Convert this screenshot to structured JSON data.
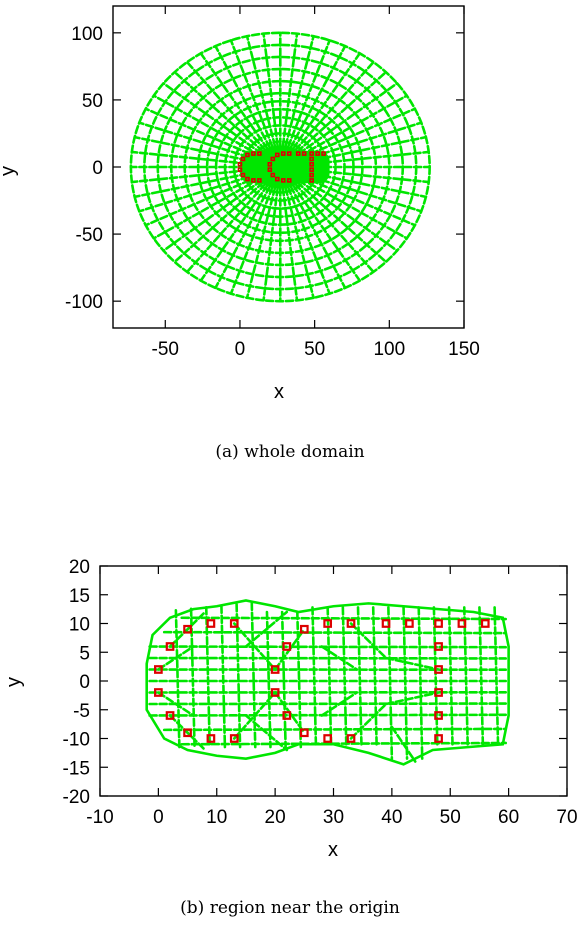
{
  "chart_data": [
    {
      "type": "scatter",
      "caption": "(a) whole domain",
      "xlabel": "x",
      "ylabel": "y",
      "xlim": [
        -85,
        150
      ],
      "ylim": [
        -120,
        120
      ],
      "xticks": [
        -50,
        0,
        50,
        100,
        150
      ],
      "yticks": [
        -100,
        -50,
        0,
        50,
        100
      ],
      "grid": false,
      "colors": {
        "mesh": "#00e600",
        "markers": "#dd0000"
      },
      "mesh": {
        "outer_center": [
          27,
          0
        ],
        "outer_radius": 100,
        "inner_x_range": [
          0,
          60
        ],
        "inner_y_range": [
          -12,
          12
        ]
      },
      "series": [
        {
          "values": [
            [
              2,
              6
            ],
            [
              2,
              -6
            ],
            [
              0,
              2
            ],
            [
              0,
              -2
            ],
            [
              5,
              9
            ],
            [
              5,
              -9
            ],
            [
              9,
              10
            ],
            [
              9,
              -10
            ],
            [
              13,
              10
            ],
            [
              13,
              -10
            ],
            [
              20,
              2
            ],
            [
              20,
              -2
            ],
            [
              22,
              6
            ],
            [
              22,
              -6
            ],
            [
              25,
              9
            ],
            [
              25,
              -9
            ],
            [
              29,
              10
            ],
            [
              29,
              -10
            ],
            [
              33,
              10
            ],
            [
              33,
              -10
            ],
            [
              39,
              10
            ],
            [
              43,
              10
            ],
            [
              48,
              10
            ],
            [
              52,
              10
            ],
            [
              56,
              10
            ],
            [
              48,
              6
            ],
            [
              48,
              2
            ],
            [
              48,
              -2
            ],
            [
              48,
              -6
            ],
            [
              48,
              -10
            ]
          ]
        }
      ]
    },
    {
      "type": "scatter",
      "caption": "(b) region near the origin",
      "xlabel": "x",
      "ylabel": "y",
      "xlim": [
        -10,
        70
      ],
      "ylim": [
        -20,
        20
      ],
      "xticks": [
        -10,
        0,
        10,
        20,
        30,
        40,
        50,
        60,
        70
      ],
      "yticks": [
        -20,
        -15,
        -10,
        -5,
        0,
        5,
        10,
        15,
        20
      ],
      "grid": false,
      "colors": {
        "mesh": "#00e600",
        "markers": "#dd0000"
      },
      "series": [
        {
          "values": [
            [
              2,
              6
            ],
            [
              2,
              -6
            ],
            [
              0,
              2
            ],
            [
              0,
              -2
            ],
            [
              5,
              9
            ],
            [
              5,
              -9
            ],
            [
              9,
              10
            ],
            [
              9,
              -10
            ],
            [
              13,
              10
            ],
            [
              13,
              -10
            ],
            [
              20,
              2
            ],
            [
              20,
              -2
            ],
            [
              22,
              6
            ],
            [
              22,
              -6
            ],
            [
              25,
              9
            ],
            [
              25,
              -9
            ],
            [
              29,
              10
            ],
            [
              29,
              -10
            ],
            [
              33,
              10
            ],
            [
              33,
              -10
            ],
            [
              39,
              10
            ],
            [
              43,
              10
            ],
            [
              48,
              10
            ],
            [
              52,
              10
            ],
            [
              56,
              10
            ],
            [
              48,
              6
            ],
            [
              48,
              2
            ],
            [
              48,
              -2
            ],
            [
              48,
              -6
            ],
            [
              48,
              -10
            ]
          ]
        }
      ]
    }
  ]
}
